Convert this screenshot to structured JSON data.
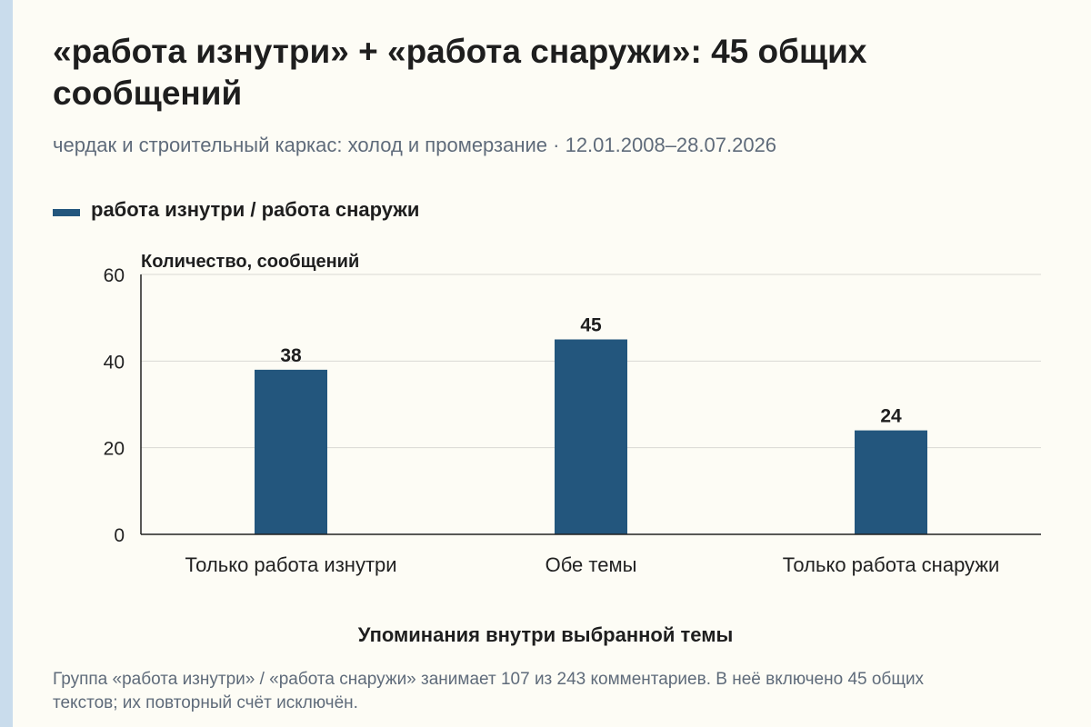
{
  "header": {
    "title": "«работа изнутри» + «работа снаружи»: 45 общих сообщений",
    "subtitle": "чердак и строительный каркас: холод и промерзание · 12.01.2008–28.07.2026"
  },
  "legend": {
    "label": "работа изнутри / работа снаружи"
  },
  "footnote": "Группа «работа изнутри» / «работа снаружи» занимает 107 из 243 комментариев. В неё включено 45 общих текстов; их повторный счёт исключён.",
  "colors": {
    "bar": "#23567d",
    "grid": "#d9d9d3",
    "axis": "#222222",
    "background": "#fdfcf5"
  },
  "chart_data": {
    "type": "bar",
    "categories": [
      "Только работа изнутри",
      "Обе темы",
      "Только работа снаружи"
    ],
    "series": [
      {
        "name": "работа изнутри / работа снаружи",
        "values": [
          38,
          45,
          24
        ]
      }
    ],
    "data_labels": [
      "38",
      "45",
      "24"
    ],
    "ylabel": "Количество, сообщений",
    "xlabel": "Упоминания внутри выбранной темы",
    "ylim": [
      0,
      60
    ],
    "yticks": [
      0,
      20,
      40,
      60
    ],
    "grid": true,
    "legend_position": "top-left"
  }
}
